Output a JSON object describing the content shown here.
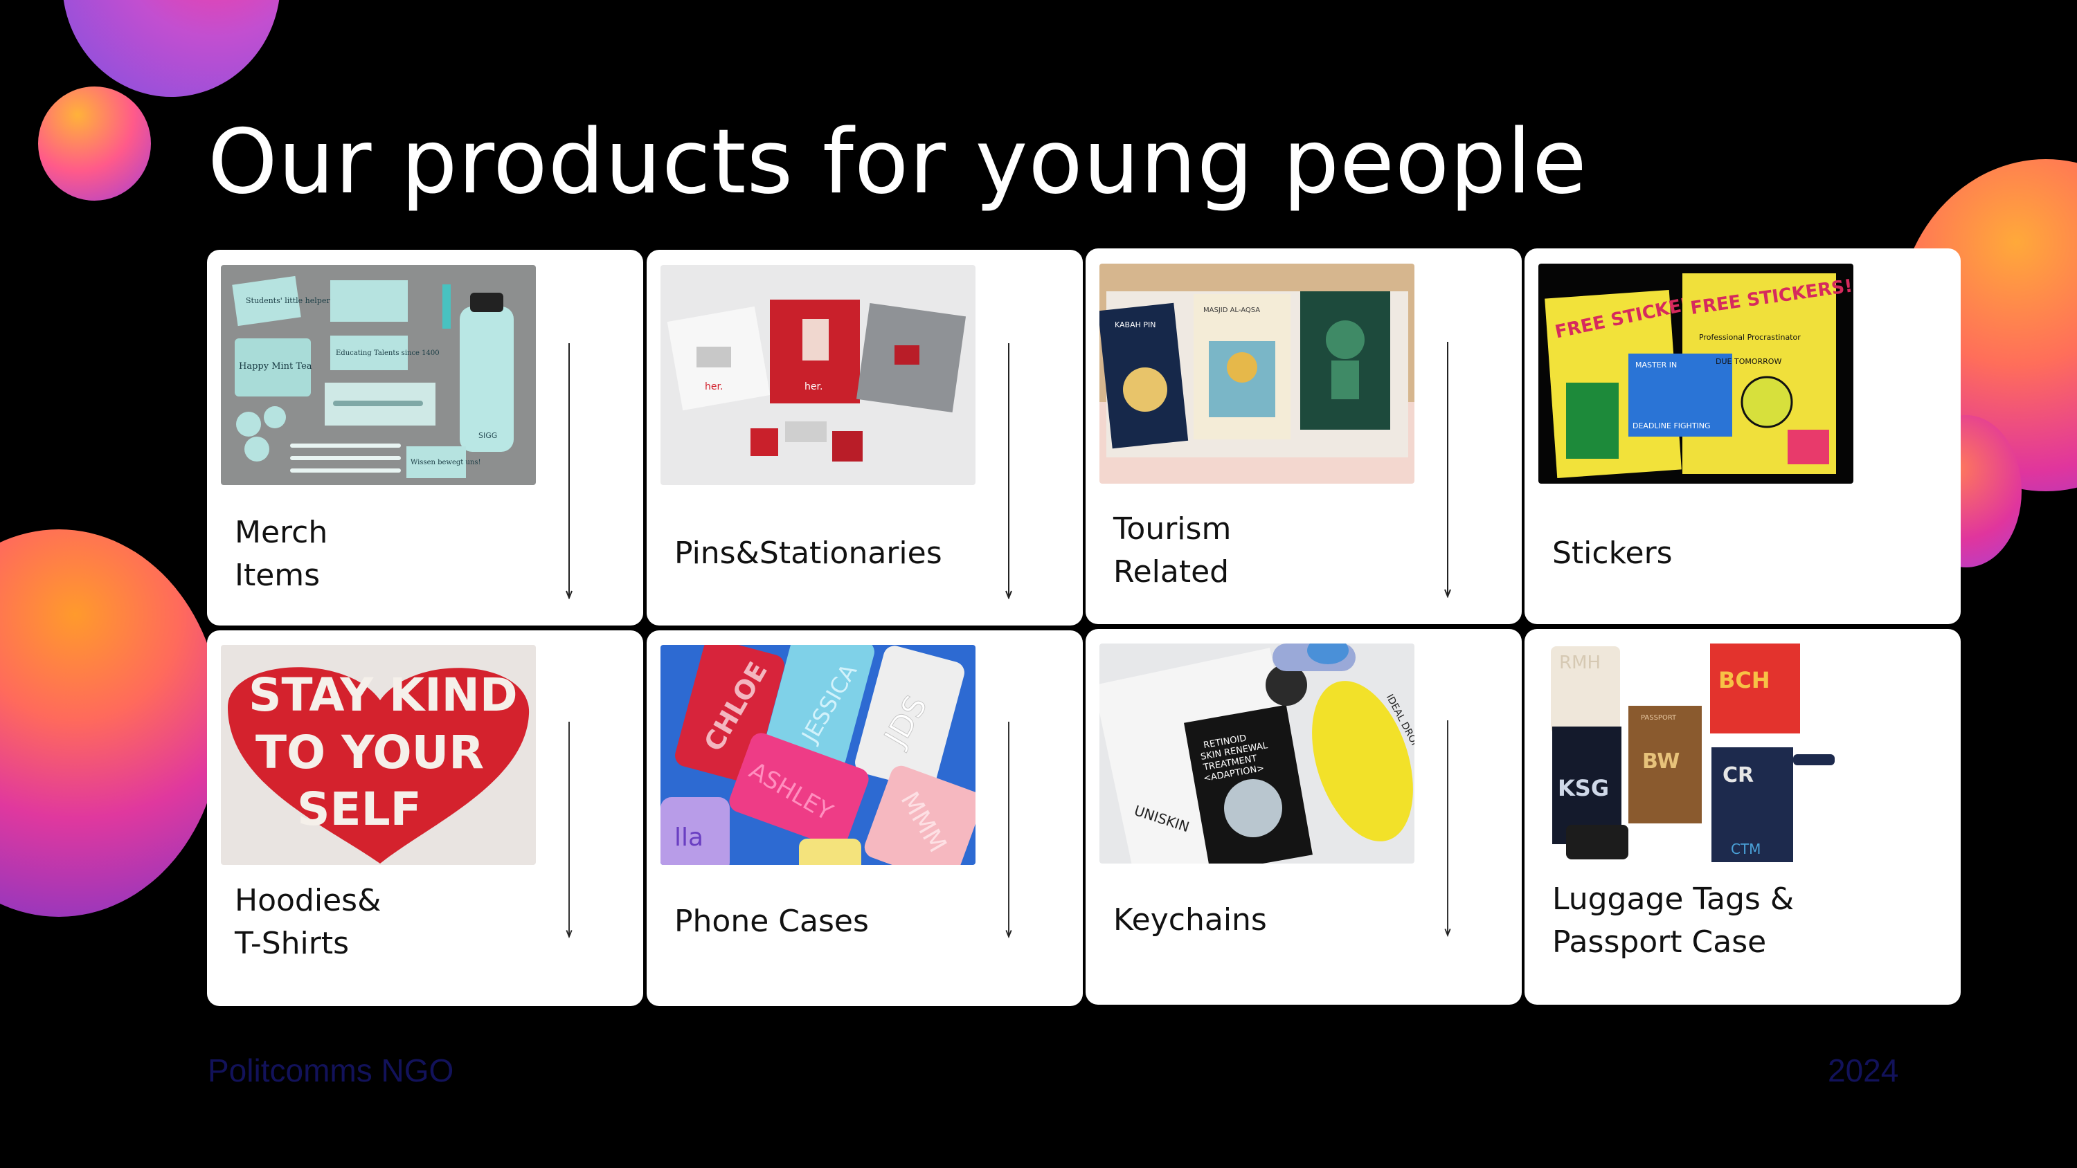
{
  "slide": {
    "title": "Our products for young people",
    "footer": {
      "organization": "Politcomms NGO",
      "year": "2024"
    }
  },
  "products": [
    {
      "label_line1": "Merch",
      "label_line2": "Items",
      "image": "merch-items-photo"
    },
    {
      "label_line1": "Pins&Stationaries",
      "label_line2": "",
      "image": "pins-stationaries-photo"
    },
    {
      "label_line1": "Tourism",
      "label_line2": "Related",
      "image": "tourism-related-photo"
    },
    {
      "label_line1": "Stickers",
      "label_line2": "",
      "image": "stickers-photo"
    },
    {
      "label_line1": "Hoodies&",
      "label_line2": "T-Shirts",
      "image": "hoodies-tshirts-photo"
    },
    {
      "label_line1": "Phone Cases",
      "label_line2": "",
      "image": "phone-cases-photo"
    },
    {
      "label_line1": "Keychains",
      "label_line2": "",
      "image": "keychains-photo"
    },
    {
      "label_line1": "Luggage Tags &",
      "label_line2": "Passport Case",
      "image": "luggage-tags-photo"
    }
  ],
  "photo_text": {
    "merch_box1": "Students' little helpers",
    "merch_box2": "Educating Talents since 1400",
    "merch_tin": "Happy Mint Tea",
    "merch_card": "Wissen bewegt uns!",
    "merch_bottle": "SIGG",
    "pins_brand": "her.",
    "tourism_card1": "KABAH PIN",
    "tourism_card2": "MASJID AL-AQSA",
    "stickers_1": "FREE STICKERS!",
    "stickers_2": "FREE STICKERS!",
    "stickers_3": "Professional Procrastinator",
    "stickers_4": "DUE TOMORROW",
    "stickers_5": "MASTER IN",
    "stickers_6": "DEADLINE FIGHTING",
    "hoodie_line1": "STAY KIND",
    "hoodie_line2": "TO YOUR",
    "hoodie_line3": "SELF",
    "case_1": "CHLOE",
    "case_2": "JESSICA",
    "case_3": "JDS",
    "case_4": "ASHLEY",
    "case_5": "MMM",
    "case_6": "lla",
    "key_1": "RETINOID",
    "key_2": "SKIN RENEWAL",
    "key_3": "TREATMENT",
    "key_4": "<ADAPTION>",
    "key_5": "UNISKIN",
    "key_6": "IDEAL DROP by UNISKIN",
    "lug_1": "RMH",
    "lug_2": "BCH",
    "lug_3": "KSG",
    "lug_4": "BW",
    "lug_5": "CR",
    "lug_6": "CTM",
    "lug_7": "PASSPORT"
  },
  "colors": {
    "background": "#000000",
    "card": "#ffffff",
    "title": "#ffffff",
    "footer": "#12125a",
    "accent_orange": "#ffa93a",
    "accent_pink": "#e0359d",
    "accent_purple": "#8050e0"
  }
}
